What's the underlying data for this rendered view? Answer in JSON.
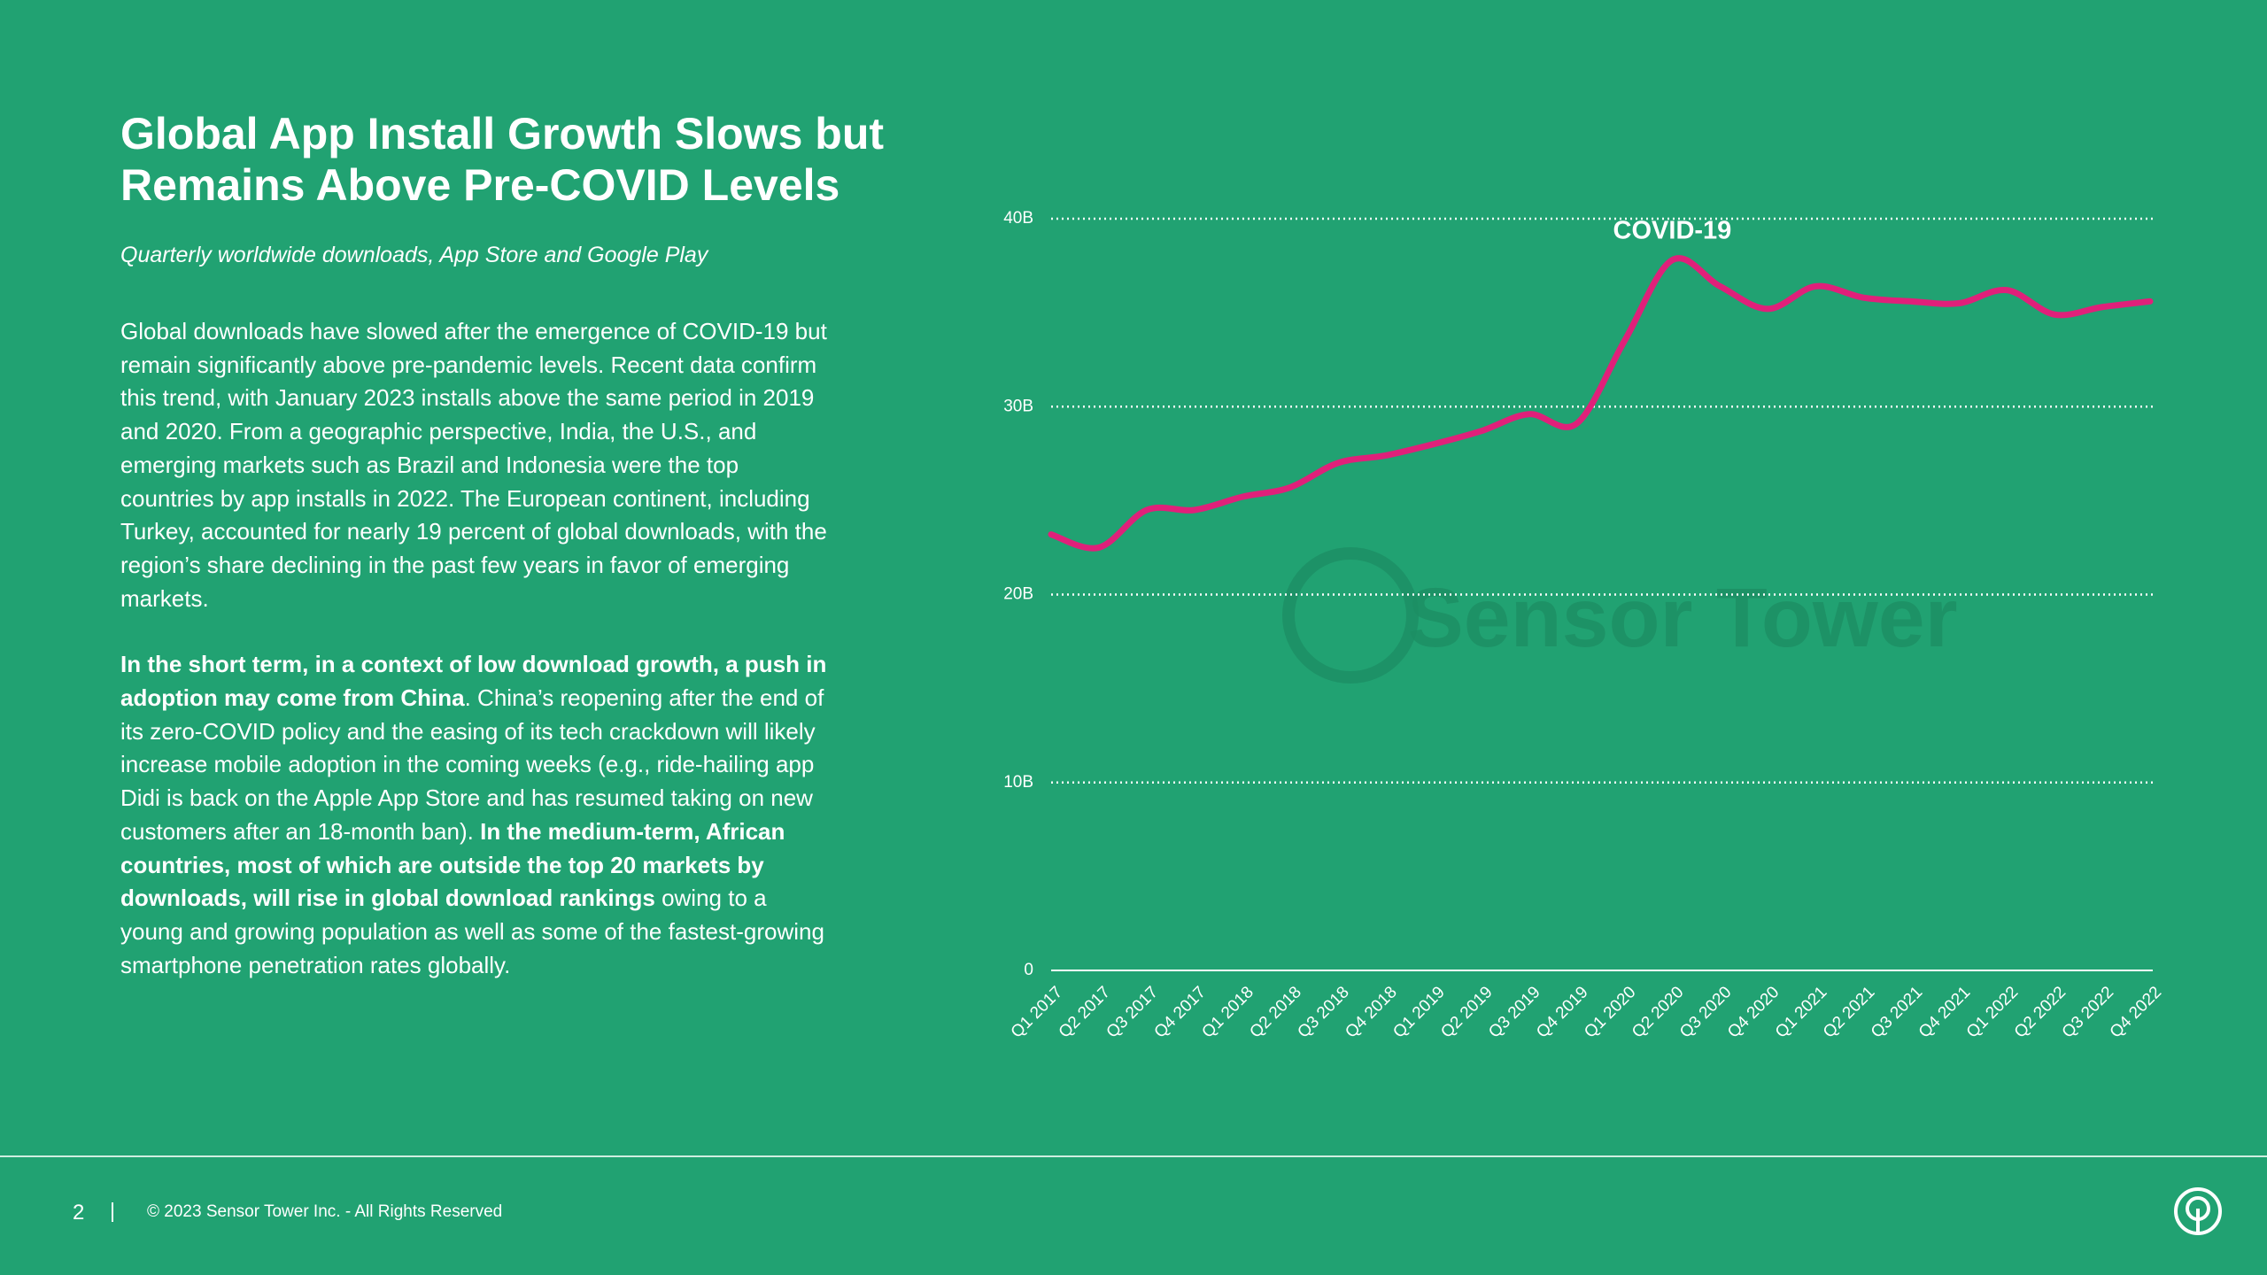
{
  "header": {
    "title": "Global App Install Growth Slows but Remains Above Pre-COVID Levels",
    "subtitle": "Quarterly worldwide downloads, App Store and Google Play"
  },
  "body": {
    "paragraph_1": "Global downloads have slowed after the emergence of COVID-19 but remain significantly above pre-pandemic levels. Recent data confirm this trend, with January 2023 installs above the same period in 2019 and 2020.  From a geographic perspective, India, the U.S., and emerging markets such as Brazil and Indonesia were the top countries by app installs in 2022. The European continent, including Turkey, accounted for nearly 19 percent of global downloads, with the region’s share declining in the past few years in favor of emerging markets.",
    "paragraph_2": [
      "In the short term, in a context of low download growth, a push in adoption may come from China",
      ". China’s reopening after the end of its zero-COVID policy and the easing of its tech crackdown will likely increase mobile adoption in the coming weeks (e.g., ride-hailing app Didi is back on the Apple App Store and has resumed taking on new customers after an 18-month ban). ",
      "In the medium-term, African countries, most of which are outside the top 20 markets by downloads, will rise in global download rankings",
      " owing to a young and growing population as well as some of the fastest-growing smartphone penetration rates globally."
    ]
  },
  "footer": {
    "page_number": "2",
    "copyright": "© 2023 Sensor Tower Inc. - All Rights Reserved"
  },
  "chart_data": {
    "type": "line",
    "annotation": "COVID-19",
    "watermark": "Sensor Tower",
    "categories": [
      "Q1 2017",
      "Q2 2017",
      "Q3 2017",
      "Q4 2017",
      "Q1 2018",
      "Q2 2018",
      "Q3 2018",
      "Q4 2018",
      "Q1 2019",
      "Q2 2019",
      "Q3 2019",
      "Q4 2019",
      "Q1 2020",
      "Q2 2020",
      "Q3 2020",
      "Q4 2020",
      "Q1 2021",
      "Q2 2021",
      "Q3 2021",
      "Q4 2021",
      "Q1 2022",
      "Q2 2022",
      "Q3 2022",
      "Q4 2022"
    ],
    "values": [
      23.2,
      22.5,
      24.5,
      24.5,
      25.2,
      25.7,
      27.0,
      27.4,
      28.0,
      28.7,
      29.6,
      29.1,
      33.5,
      37.8,
      36.4,
      35.2,
      36.4,
      35.8,
      35.6,
      35.5,
      36.2,
      34.9,
      35.3,
      35.6
    ],
    "color": "#e0207a",
    "ylim": [
      0,
      40
    ],
    "yticks": [
      0,
      {
        "value": 10,
        "label": "10B"
      },
      {
        "value": 20,
        "label": "20B"
      },
      {
        "value": 30,
        "label": "30B"
      },
      {
        "value": 40,
        "label": "40B"
      }
    ],
    "grid": true
  }
}
